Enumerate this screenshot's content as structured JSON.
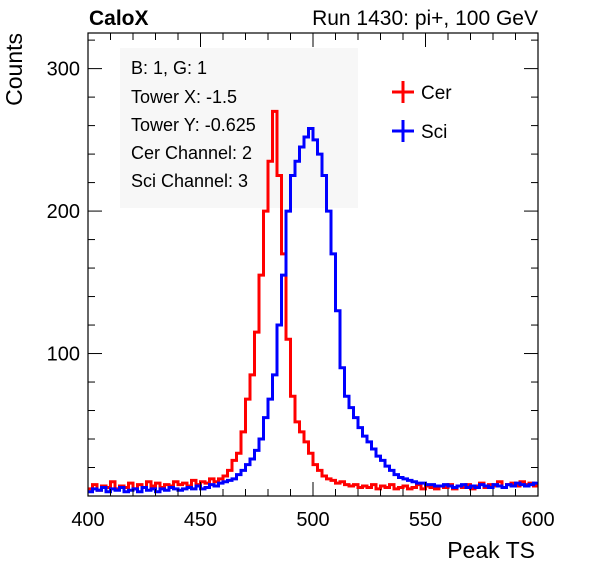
{
  "header": {
    "brand": "CaloX",
    "run_info": "Run 1430: pi+, 100 GeV"
  },
  "info_box": {
    "lines": [
      "B: 1, G: 1",
      "Tower X: -1.5",
      "Tower Y: -0.625",
      "Cer Channel: 2",
      "Sci Channel: 3"
    ]
  },
  "chart_data": {
    "type": "line",
    "style": "histogram-step",
    "title": "",
    "xlabel": "Peak TS",
    "ylabel": "Counts",
    "xlim": [
      400,
      600
    ],
    "ylim": [
      0,
      325
    ],
    "x_ticks": [
      400,
      450,
      500,
      550,
      600
    ],
    "y_ticks": [
      100,
      200,
      300
    ],
    "grid": false,
    "legend_position": "top-right",
    "colors": {
      "Cer": "#ff0000",
      "Sci": "#0000ff"
    },
    "x": [
      400,
      402,
      404,
      406,
      408,
      410,
      412,
      414,
      416,
      418,
      420,
      422,
      424,
      426,
      428,
      430,
      432,
      434,
      436,
      438,
      440,
      442,
      444,
      446,
      448,
      450,
      452,
      454,
      456,
      458,
      460,
      462,
      464,
      466,
      468,
      470,
      472,
      474,
      476,
      478,
      480,
      482,
      484,
      486,
      488,
      490,
      492,
      494,
      496,
      498,
      500,
      502,
      504,
      506,
      508,
      510,
      512,
      514,
      516,
      518,
      520,
      522,
      524,
      526,
      528,
      530,
      532,
      534,
      536,
      538,
      540,
      542,
      544,
      546,
      548,
      550,
      552,
      554,
      556,
      558,
      560,
      562,
      564,
      566,
      568,
      570,
      572,
      574,
      576,
      578,
      580,
      582,
      584,
      586,
      588,
      590,
      592,
      594,
      596,
      598
    ],
    "series": [
      {
        "name": "Cer",
        "values": [
          5,
          8,
          4,
          7,
          6,
          10,
          5,
          7,
          6,
          9,
          5,
          8,
          6,
          10,
          7,
          9,
          6,
          8,
          7,
          10,
          8,
          9,
          7,
          11,
          8,
          10,
          9,
          12,
          10,
          12,
          14,
          18,
          25,
          30,
          45,
          68,
          85,
          115,
          155,
          200,
          235,
          270,
          225,
          170,
          110,
          70,
          52,
          45,
          38,
          30,
          22,
          18,
          14,
          12,
          11,
          9,
          10,
          8,
          7,
          8,
          6,
          7,
          6,
          8,
          5,
          7,
          6,
          8,
          5,
          6,
          7,
          5,
          6,
          8,
          5,
          7,
          6,
          5,
          7,
          6,
          8,
          5,
          7,
          6,
          8,
          5,
          7,
          9,
          6,
          8,
          7,
          10,
          6,
          8,
          9,
          7,
          10,
          8,
          9,
          7
        ]
      },
      {
        "name": "Sci",
        "values": [
          3,
          5,
          4,
          6,
          3,
          5,
          4,
          6,
          3,
          4,
          5,
          3,
          6,
          4,
          5,
          3,
          5,
          4,
          6,
          5,
          4,
          5,
          6,
          5,
          7,
          5,
          6,
          8,
          7,
          9,
          10,
          11,
          12,
          15,
          18,
          22,
          26,
          32,
          40,
          55,
          68,
          85,
          120,
          155,
          200,
          225,
          235,
          245,
          252,
          258,
          250,
          240,
          225,
          200,
          170,
          130,
          90,
          70,
          62,
          55,
          48,
          42,
          38,
          33,
          28,
          25,
          21,
          18,
          15,
          13,
          12,
          11,
          10,
          9,
          9,
          8,
          8,
          7,
          7,
          8,
          7,
          6,
          7,
          8,
          6,
          7,
          6,
          8,
          7,
          6,
          8,
          7,
          6,
          8,
          7,
          9,
          8,
          7,
          8,
          9
        ]
      }
    ]
  }
}
